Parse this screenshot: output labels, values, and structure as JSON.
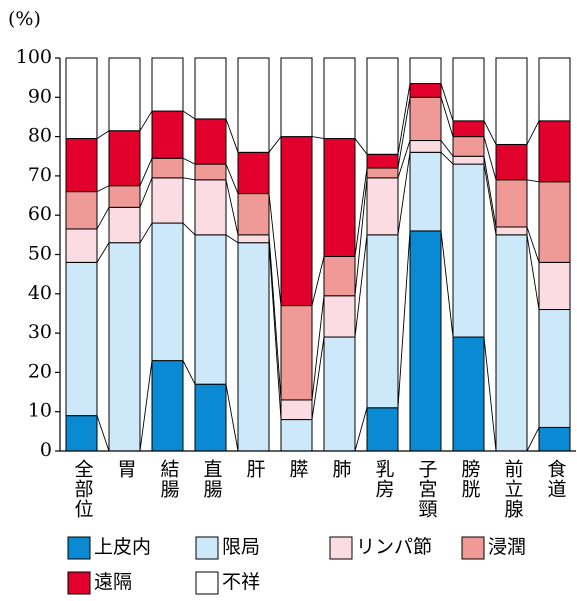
{
  "chart_data": {
    "type": "stacked_bar",
    "y_label": "(%)",
    "categories": [
      "全部位",
      "胃",
      "結腸",
      "直腸",
      "肝",
      "膵",
      "肺",
      "乳房",
      "子宮頸",
      "膀胱",
      "前立腺",
      "食道"
    ],
    "series": [
      {
        "name": "上皮内",
        "color": "#0a8ad2",
        "values": [
          9,
          0,
          23,
          17,
          0,
          0,
          0,
          11,
          56,
          29,
          0,
          6
        ]
      },
      {
        "name": "限局",
        "color": "#cde8f8",
        "values": [
          39,
          53,
          35,
          38,
          53,
          8,
          29,
          44,
          20,
          44,
          55,
          30
        ]
      },
      {
        "name": "リンパ節",
        "color": "#fcdce3",
        "values": [
          8.5,
          9,
          11.5,
          14,
          2,
          5,
          10.5,
          14.5,
          3,
          2,
          2,
          12
        ]
      },
      {
        "name": "浸潤",
        "color": "#f09a98",
        "values": [
          9.5,
          5.5,
          5,
          4,
          10.5,
          24,
          10,
          2.5,
          11,
          5,
          12,
          20.5
        ]
      },
      {
        "name": "遠隔",
        "color": "#e2002d",
        "values": [
          13.5,
          14,
          12,
          11.5,
          10.5,
          43,
          30,
          3.5,
          3.5,
          4,
          9,
          15.5
        ]
      },
      {
        "name": "不祥",
        "color": "#ffffff",
        "values": [
          20.5,
          18.5,
          13.5,
          15.5,
          24,
          20,
          20.5,
          24.5,
          6.5,
          16,
          22,
          16
        ]
      }
    ],
    "ylim": [
      0,
      100
    ],
    "yticks": [
      0,
      10,
      20,
      30,
      40,
      50,
      60,
      70,
      80,
      90,
      100
    ]
  }
}
